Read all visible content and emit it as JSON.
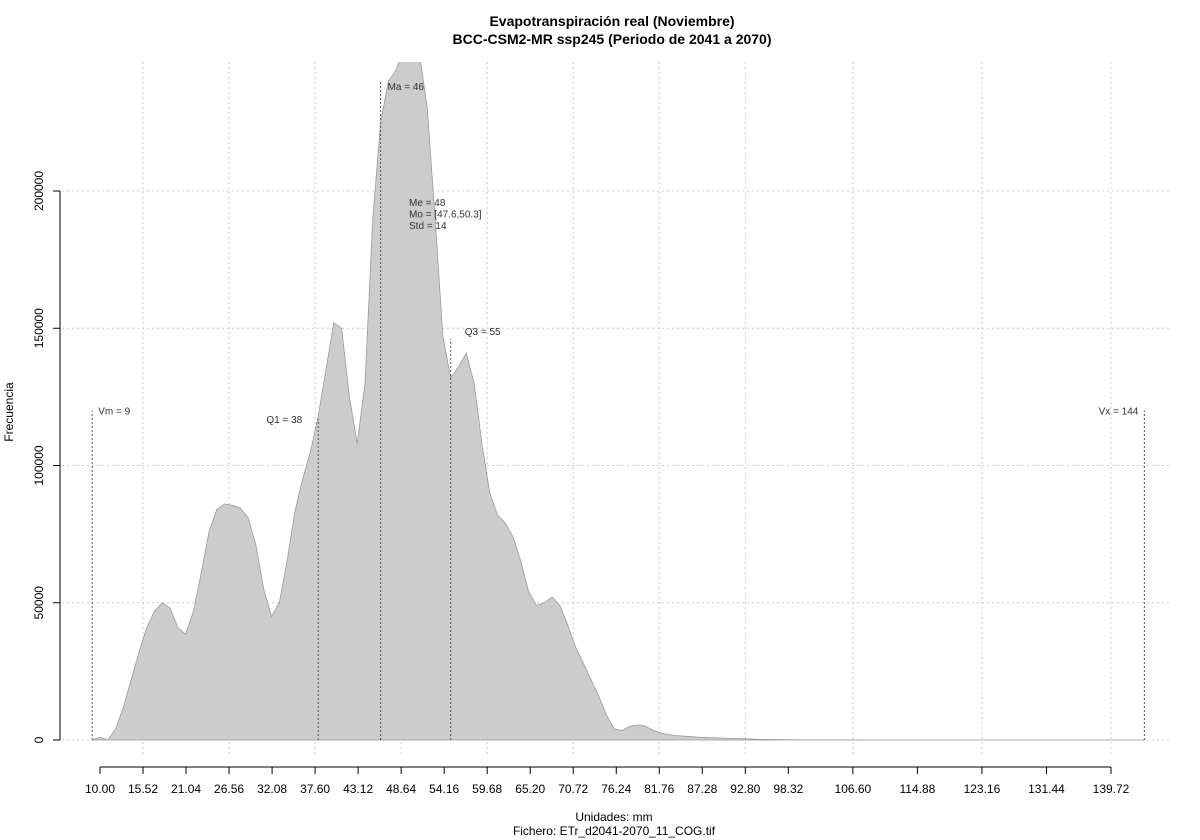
{
  "chart_data": {
    "type": "area",
    "title": "Evapotranspiración real (Noviembre)",
    "subtitle": "BCC-CSM2-MR ssp245 (Periodo de 2041 a 2070)",
    "xlabel": "Unidades: mm",
    "ylabel": "Frecuencia",
    "footer": "Fichero: ETr_d2041-2070_11_COG.tif",
    "xlim": [
      8,
      150
    ],
    "ylim": [
      0,
      250000
    ],
    "x_ticks": [
      10.0,
      15.52,
      21.04,
      26.56,
      32.08,
      37.6,
      43.12,
      48.64,
      54.16,
      59.68,
      65.2,
      70.72,
      76.24,
      81.76,
      87.28,
      92.8,
      98.32,
      106.6,
      114.88,
      123.16,
      131.44,
      139.72
    ],
    "x_tick_labels": [
      "10.00",
      "15.52",
      "21.04",
      "26.56",
      "32.08",
      "37.60",
      "43.12",
      "48.64",
      "54.16",
      "59.68",
      "65.20",
      "70.72",
      "76.24",
      "81.76",
      "87.28",
      "92.80",
      "98.32",
      "106.60",
      "114.88",
      "123.16",
      "131.44",
      "139.72"
    ],
    "y_ticks": [
      0,
      50000,
      100000,
      150000,
      200000
    ],
    "y_tick_labels": [
      "0",
      "50000",
      "100000",
      "150000",
      "200000"
    ],
    "grid": true,
    "fill_color": "#cccccc",
    "x": [
      9,
      10,
      11,
      12,
      13,
      14,
      15,
      16,
      17,
      18,
      19,
      20,
      21,
      22,
      23,
      24,
      25,
      26,
      27,
      28,
      29,
      30,
      31,
      32,
      33,
      34,
      35,
      36,
      37,
      38,
      39,
      40,
      41,
      42,
      43,
      44,
      45,
      46,
      47,
      48,
      49,
      50,
      51,
      52,
      53,
      54,
      55,
      56,
      57,
      58,
      59,
      60,
      61,
      62,
      63,
      64,
      65,
      66,
      67,
      68,
      69,
      70,
      71,
      72,
      73,
      74,
      75,
      76,
      77,
      78,
      79,
      80,
      81,
      82,
      83,
      84,
      85,
      86,
      87,
      88,
      90,
      92,
      94,
      96,
      98,
      100,
      105,
      110,
      120,
      130,
      140,
      144
    ],
    "y": [
      0,
      1000,
      0,
      4000,
      12000,
      22000,
      32000,
      41000,
      47000,
      50000,
      48000,
      41000,
      38500,
      47000,
      61000,
      76000,
      84000,
      86000,
      85500,
      84500,
      81000,
      71000,
      55000,
      45000,
      50000,
      65000,
      83000,
      95000,
      105000,
      118000,
      135000,
      152000,
      150000,
      125000,
      108000,
      130000,
      190000,
      225000,
      240000,
      244000,
      253000,
      258000,
      250000,
      230000,
      190000,
      147000,
      132000,
      136000,
      141000,
      130000,
      108000,
      90000,
      82000,
      79000,
      74000,
      65000,
      54000,
      49000,
      50000,
      52000,
      49000,
      42000,
      34000,
      28000,
      22000,
      16000,
      9000,
      4000,
      3500,
      5000,
      5500,
      5000,
      3500,
      2500,
      2000,
      1600,
      1400,
      1200,
      1000,
      900,
      700,
      500,
      300,
      200,
      100,
      50,
      20,
      10,
      5,
      2,
      1,
      0
    ],
    "annotations": {
      "vm": {
        "label": "Vm = 9",
        "x": 9,
        "y": 120000
      },
      "vx": {
        "label": "Vx = 144",
        "x": 144,
        "y": 120000
      },
      "q1": {
        "label": "Q1 = 38",
        "x": 38,
        "y": 117000
      },
      "ma": {
        "label": "Ma = 46",
        "x": 46,
        "y": 240000
      },
      "q3": {
        "label": "Q3 = 55",
        "x": 55,
        "y": 146000
      },
      "stats": [
        "Me = 48",
        "Mo = [47.6,50.3]",
        "Std = 14"
      ]
    }
  }
}
